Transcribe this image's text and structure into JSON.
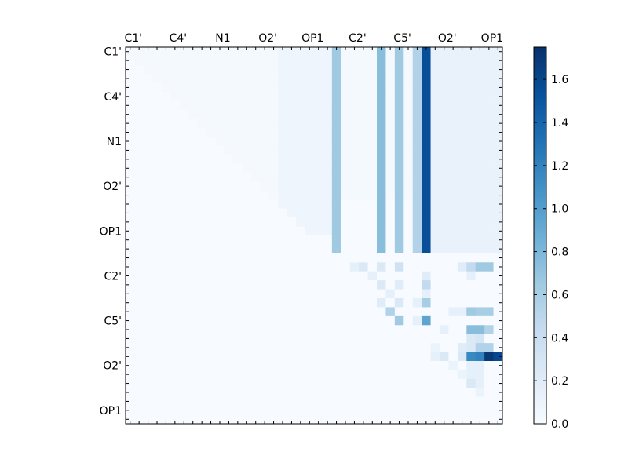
{
  "chart_data": {
    "type": "heatmap",
    "colormap": "Blues",
    "n_atoms": 42,
    "title": "",
    "xlabel": "",
    "ylabel": "",
    "x_tick_labels": [
      "C1'",
      "C4'",
      "N1",
      "O2'",
      "OP1",
      "C2'",
      "C5'",
      "O2'",
      "OP1"
    ],
    "y_tick_labels": [
      "C1'",
      "C4'",
      "N1",
      "O2'",
      "OP1",
      "C2'",
      "C5'",
      "O2'",
      "OP1"
    ],
    "tick_label_every": 5,
    "colorbar": {
      "min": 0.0,
      "max": 1.75,
      "ticks": [
        0.0,
        0.2,
        0.4,
        0.6,
        0.8,
        1.0,
        1.2,
        1.4,
        1.6
      ],
      "tick_labels": [
        "0.0",
        "0.2",
        "0.4",
        "0.6",
        "0.8",
        "1.0",
        "1.2",
        "1.4",
        "1.6"
      ]
    },
    "description_note": "Upper-triangular matrix; strong columns near C2' (col 23), C5' (cols 28,30), O2' (col 33); strong cells in rows 33-34 at cols 37-41.",
    "column_bands": [
      {
        "col": 23,
        "rows": [
          0,
          22
        ],
        "value": 0.65
      },
      {
        "col": 28,
        "rows": [
          0,
          22
        ],
        "value": 0.75
      },
      {
        "col": 30,
        "rows": [
          0,
          22
        ],
        "value": 0.65
      },
      {
        "col": 32,
        "rows": [
          0,
          22
        ],
        "value": 0.55
      },
      {
        "col": 33,
        "rows": [
          0,
          22
        ],
        "value": 1.55
      }
    ],
    "cells": [
      {
        "r": 24,
        "c": 25,
        "v": 0.15
      },
      {
        "r": 24,
        "c": 26,
        "v": 0.25
      },
      {
        "r": 24,
        "c": 28,
        "v": 0.25
      },
      {
        "r": 24,
        "c": 30,
        "v": 0.35
      },
      {
        "r": 24,
        "c": 37,
        "v": 0.2
      },
      {
        "r": 24,
        "c": 38,
        "v": 0.45
      },
      {
        "r": 24,
        "c": 39,
        "v": 0.65
      },
      {
        "r": 24,
        "c": 40,
        "v": 0.65
      },
      {
        "r": 25,
        "c": 27,
        "v": 0.15
      },
      {
        "r": 25,
        "c": 33,
        "v": 0.2
      },
      {
        "r": 25,
        "c": 38,
        "v": 0.15
      },
      {
        "r": 26,
        "c": 28,
        "v": 0.25
      },
      {
        "r": 26,
        "c": 30,
        "v": 0.2
      },
      {
        "r": 26,
        "c": 33,
        "v": 0.45
      },
      {
        "r": 27,
        "c": 29,
        "v": 0.15
      },
      {
        "r": 27,
        "c": 33,
        "v": 0.15
      },
      {
        "r": 28,
        "c": 28,
        "v": 0.2
      },
      {
        "r": 28,
        "c": 30,
        "v": 0.25
      },
      {
        "r": 28,
        "c": 32,
        "v": 0.15
      },
      {
        "r": 28,
        "c": 33,
        "v": 0.6
      },
      {
        "r": 29,
        "c": 29,
        "v": 0.55
      },
      {
        "r": 29,
        "c": 36,
        "v": 0.15
      },
      {
        "r": 29,
        "c": 38,
        "v": 0.65
      },
      {
        "r": 29,
        "c": 39,
        "v": 0.6
      },
      {
        "r": 29,
        "c": 40,
        "v": 0.6
      },
      {
        "r": 29,
        "c": 37,
        "v": 0.15
      },
      {
        "r": 30,
        "c": 30,
        "v": 0.65
      },
      {
        "r": 30,
        "c": 32,
        "v": 0.15
      },
      {
        "r": 30,
        "c": 33,
        "v": 0.95
      },
      {
        "r": 31,
        "c": 35,
        "v": 0.15
      },
      {
        "r": 31,
        "c": 38,
        "v": 0.75
      },
      {
        "r": 31,
        "c": 39,
        "v": 0.75
      },
      {
        "r": 31,
        "c": 40,
        "v": 0.55
      },
      {
        "r": 32,
        "c": 38,
        "v": 0.25
      },
      {
        "r": 32,
        "c": 39,
        "v": 0.3
      },
      {
        "r": 33,
        "c": 34,
        "v": 0.1
      },
      {
        "r": 33,
        "c": 37,
        "v": 0.2
      },
      {
        "r": 33,
        "c": 38,
        "v": 0.25
      },
      {
        "r": 33,
        "c": 39,
        "v": 0.55
      },
      {
        "r": 33,
        "c": 40,
        "v": 0.55
      },
      {
        "r": 34,
        "c": 34,
        "v": 0.15
      },
      {
        "r": 34,
        "c": 35,
        "v": 0.25
      },
      {
        "r": 34,
        "c": 37,
        "v": 0.25
      },
      {
        "r": 34,
        "c": 38,
        "v": 1.15
      },
      {
        "r": 34,
        "c": 39,
        "v": 1.2
      },
      {
        "r": 34,
        "c": 40,
        "v": 1.7
      },
      {
        "r": 34,
        "c": 41,
        "v": 1.6
      },
      {
        "r": 35,
        "c": 36,
        "v": 0.1
      },
      {
        "r": 35,
        "c": 38,
        "v": 0.15
      },
      {
        "r": 35,
        "c": 39,
        "v": 0.15
      },
      {
        "r": 36,
        "c": 37,
        "v": 0.1
      },
      {
        "r": 36,
        "c": 38,
        "v": 0.15
      },
      {
        "r": 36,
        "c": 39,
        "v": 0.15
      },
      {
        "r": 37,
        "c": 38,
        "v": 0.25
      },
      {
        "r": 37,
        "c": 39,
        "v": 0.15
      },
      {
        "r": 38,
        "c": 39,
        "v": 0.1
      }
    ]
  }
}
